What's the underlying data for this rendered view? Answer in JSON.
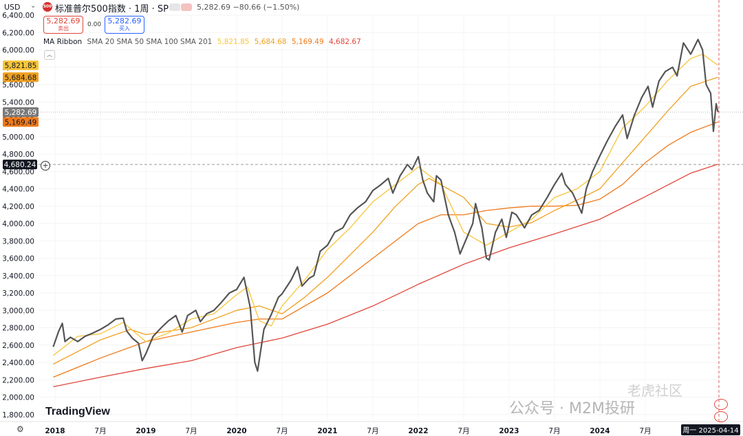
{
  "header": {
    "currency": "USD",
    "logo_text": "500",
    "symbol_title": "标准普尔500指数 · 1周 · SP",
    "last_price": "5,282.69",
    "change": "−80.66 (−1.50%)"
  },
  "trade": {
    "sell_price": "5,282.69",
    "sell_label": "卖出",
    "spread": "0.00",
    "buy_price": "5,282.69",
    "buy_label": "买入"
  },
  "ribbon": {
    "name": "MA Ribbon",
    "params": "SMA 20 SMA 50 SMA 100 SMA 201",
    "v1": "5,821.85",
    "v2": "5,684.68",
    "v3": "5,169.49",
    "v4": "4,682.67"
  },
  "branding": {
    "tradingview": "TradingView",
    "watermark": "公众号 · M2M投研",
    "watermark2": "老虎社区"
  },
  "colors": {
    "price_line": "#555555",
    "sma20": "#f7c53a",
    "sma50": "#f0a020",
    "sma100": "#ef7a1a",
    "sma201": "#e0453a",
    "sell": "#e0453a",
    "buy": "#2962ff"
  },
  "chart_data": {
    "type": "line",
    "title": "标准普尔500指数 · 1周 · SP",
    "ylim": [
      1750,
      6500
    ],
    "y_ticks": [
      1800,
      2000,
      2200,
      2400,
      2600,
      2800,
      3000,
      3200,
      3400,
      3600,
      3800,
      4000,
      4200,
      4400,
      4600,
      4800,
      5000,
      5200,
      5400,
      5600,
      5800,
      6000,
      6200,
      6400
    ],
    "x_tick_labels": [
      {
        "t": 2018.0,
        "label": "2018"
      },
      {
        "t": 2018.5,
        "label": "7月"
      },
      {
        "t": 2019.0,
        "label": "2019"
      },
      {
        "t": 2019.5,
        "label": "7月"
      },
      {
        "t": 2020.0,
        "label": "2020"
      },
      {
        "t": 2020.5,
        "label": "7月"
      },
      {
        "t": 2021.0,
        "label": "2021"
      },
      {
        "t": 2021.5,
        "label": "7月"
      },
      {
        "t": 2022.0,
        "label": "2022"
      },
      {
        "t": 2022.5,
        "label": "7月"
      },
      {
        "t": 2023.0,
        "label": "2023"
      },
      {
        "t": 2023.5,
        "label": "7月"
      },
      {
        "t": 2024.0,
        "label": "2024"
      },
      {
        "t": 2024.5,
        "label": "7月"
      }
    ],
    "x_range": [
      2017.8,
      2025.5
    ],
    "date_label": "周一 2025-04-14",
    "crosshair_price": "4,680.24",
    "crosshair_value": 4680.24,
    "price_tags": [
      {
        "label": "5,821.85",
        "value": 5821.85,
        "color": "#f7c53a"
      },
      {
        "label": "5,684.68",
        "value": 5684.68,
        "color": "#f0a020"
      },
      {
        "label": "5,282.69",
        "value": 5282.69,
        "color": "#7a7a7a"
      },
      {
        "label": "5,169.49",
        "value": 5169.49,
        "color": "#ef7a1a"
      }
    ],
    "series": [
      {
        "name": "SP",
        "key": "price",
        "points": [
          [
            2017.98,
            2580
          ],
          [
            2018.04,
            2760
          ],
          [
            2018.08,
            2850
          ],
          [
            2018.11,
            2640
          ],
          [
            2018.17,
            2690
          ],
          [
            2018.25,
            2640
          ],
          [
            2018.33,
            2700
          ],
          [
            2018.42,
            2740
          ],
          [
            2018.5,
            2780
          ],
          [
            2018.58,
            2830
          ],
          [
            2018.67,
            2900
          ],
          [
            2018.75,
            2910
          ],
          [
            2018.79,
            2760
          ],
          [
            2018.85,
            2680
          ],
          [
            2018.92,
            2620
          ],
          [
            2018.96,
            2420
          ],
          [
            2019.0,
            2500
          ],
          [
            2019.08,
            2700
          ],
          [
            2019.17,
            2800
          ],
          [
            2019.25,
            2880
          ],
          [
            2019.33,
            2940
          ],
          [
            2019.4,
            2750
          ],
          [
            2019.46,
            2940
          ],
          [
            2019.55,
            3000
          ],
          [
            2019.6,
            2870
          ],
          [
            2019.67,
            2960
          ],
          [
            2019.75,
            3000
          ],
          [
            2019.83,
            3090
          ],
          [
            2019.92,
            3200
          ],
          [
            2020.0,
            3240
          ],
          [
            2020.08,
            3380
          ],
          [
            2020.15,
            3030
          ],
          [
            2020.2,
            2400
          ],
          [
            2020.23,
            2300
          ],
          [
            2020.3,
            2780
          ],
          [
            2020.38,
            2950
          ],
          [
            2020.46,
            3150
          ],
          [
            2020.5,
            3190
          ],
          [
            2020.6,
            3350
          ],
          [
            2020.67,
            3500
          ],
          [
            2020.72,
            3280
          ],
          [
            2020.8,
            3370
          ],
          [
            2020.85,
            3400
          ],
          [
            2020.92,
            3680
          ],
          [
            2021.0,
            3750
          ],
          [
            2021.08,
            3900
          ],
          [
            2021.17,
            3950
          ],
          [
            2021.25,
            4100
          ],
          [
            2021.33,
            4180
          ],
          [
            2021.42,
            4250
          ],
          [
            2021.5,
            4380
          ],
          [
            2021.58,
            4440
          ],
          [
            2021.67,
            4520
          ],
          [
            2021.72,
            4350
          ],
          [
            2021.8,
            4550
          ],
          [
            2021.88,
            4680
          ],
          [
            2021.93,
            4620
          ],
          [
            2022.0,
            4770
          ],
          [
            2022.05,
            4500
          ],
          [
            2022.1,
            4350
          ],
          [
            2022.17,
            4250
          ],
          [
            2022.2,
            4550
          ],
          [
            2022.25,
            4500
          ],
          [
            2022.33,
            4100
          ],
          [
            2022.4,
            3900
          ],
          [
            2022.46,
            3650
          ],
          [
            2022.52,
            3800
          ],
          [
            2022.6,
            4000
          ],
          [
            2022.63,
            4230
          ],
          [
            2022.7,
            3950
          ],
          [
            2022.75,
            3600
          ],
          [
            2022.78,
            3580
          ],
          [
            2022.85,
            3900
          ],
          [
            2022.92,
            4050
          ],
          [
            2022.97,
            3840
          ],
          [
            2023.03,
            4130
          ],
          [
            2023.08,
            4100
          ],
          [
            2023.17,
            3950
          ],
          [
            2023.25,
            4100
          ],
          [
            2023.33,
            4150
          ],
          [
            2023.42,
            4300
          ],
          [
            2023.5,
            4450
          ],
          [
            2023.58,
            4580
          ],
          [
            2023.62,
            4450
          ],
          [
            2023.7,
            4350
          ],
          [
            2023.8,
            4120
          ],
          [
            2023.85,
            4400
          ],
          [
            2023.92,
            4600
          ],
          [
            2024.0,
            4780
          ],
          [
            2024.08,
            4950
          ],
          [
            2024.17,
            5120
          ],
          [
            2024.25,
            5250
          ],
          [
            2024.3,
            4980
          ],
          [
            2024.38,
            5250
          ],
          [
            2024.46,
            5450
          ],
          [
            2024.53,
            5580
          ],
          [
            2024.58,
            5340
          ],
          [
            2024.65,
            5640
          ],
          [
            2024.72,
            5750
          ],
          [
            2024.8,
            5800
          ],
          [
            2024.85,
            5700
          ],
          [
            2024.92,
            6080
          ],
          [
            2025.0,
            5950
          ],
          [
            2025.08,
            6120
          ],
          [
            2025.13,
            6000
          ],
          [
            2025.17,
            5600
          ],
          [
            2025.22,
            5500
          ],
          [
            2025.25,
            5062
          ],
          [
            2025.28,
            5380
          ],
          [
            2025.3,
            5282.69
          ]
        ]
      },
      {
        "name": "SMA 20",
        "key": "sma20",
        "points": [
          [
            2017.98,
            2480
          ],
          [
            2018.25,
            2700
          ],
          [
            2018.5,
            2730
          ],
          [
            2018.75,
            2860
          ],
          [
            2019.0,
            2640
          ],
          [
            2019.25,
            2740
          ],
          [
            2019.5,
            2900
          ],
          [
            2019.75,
            2960
          ],
          [
            2020.0,
            3180
          ],
          [
            2020.12,
            3270
          ],
          [
            2020.25,
            2880
          ],
          [
            2020.38,
            2820
          ],
          [
            2020.5,
            3050
          ],
          [
            2020.75,
            3350
          ],
          [
            2021.0,
            3700
          ],
          [
            2021.25,
            3950
          ],
          [
            2021.5,
            4250
          ],
          [
            2021.75,
            4450
          ],
          [
            2022.0,
            4650
          ],
          [
            2022.25,
            4450
          ],
          [
            2022.5,
            3900
          ],
          [
            2022.75,
            3750
          ],
          [
            2023.0,
            3900
          ],
          [
            2023.25,
            4050
          ],
          [
            2023.5,
            4300
          ],
          [
            2023.75,
            4400
          ],
          [
            2024.0,
            4600
          ],
          [
            2024.25,
            5100
          ],
          [
            2024.5,
            5350
          ],
          [
            2024.75,
            5650
          ],
          [
            2025.0,
            5900
          ],
          [
            2025.13,
            5950
          ],
          [
            2025.3,
            5821.85
          ]
        ]
      },
      {
        "name": "SMA 50",
        "key": "sma50",
        "points": [
          [
            2017.98,
            2380
          ],
          [
            2018.5,
            2660
          ],
          [
            2018.83,
            2780
          ],
          [
            2019.0,
            2720
          ],
          [
            2019.5,
            2800
          ],
          [
            2020.0,
            3000
          ],
          [
            2020.25,
            3050
          ],
          [
            2020.5,
            2960
          ],
          [
            2020.75,
            3150
          ],
          [
            2021.0,
            3380
          ],
          [
            2021.5,
            3900
          ],
          [
            2021.75,
            4200
          ],
          [
            2022.0,
            4450
          ],
          [
            2022.12,
            4520
          ],
          [
            2022.5,
            4300
          ],
          [
            2022.75,
            4000
          ],
          [
            2023.0,
            3960
          ],
          [
            2023.25,
            4010
          ],
          [
            2023.5,
            4150
          ],
          [
            2023.75,
            4270
          ],
          [
            2024.0,
            4400
          ],
          [
            2024.25,
            4700
          ],
          [
            2024.5,
            5000
          ],
          [
            2024.75,
            5300
          ],
          [
            2025.0,
            5580
          ],
          [
            2025.3,
            5684.68
          ]
        ]
      },
      {
        "name": "SMA 100",
        "key": "sma100",
        "points": [
          [
            2017.98,
            2230
          ],
          [
            2018.5,
            2450
          ],
          [
            2019.0,
            2640
          ],
          [
            2019.5,
            2750
          ],
          [
            2020.0,
            2860
          ],
          [
            2020.25,
            2900
          ],
          [
            2020.5,
            2900
          ],
          [
            2021.0,
            3200
          ],
          [
            2021.5,
            3600
          ],
          [
            2022.0,
            4000
          ],
          [
            2022.25,
            4100
          ],
          [
            2022.5,
            4100
          ],
          [
            2022.75,
            4150
          ],
          [
            2023.0,
            4180
          ],
          [
            2023.25,
            4200
          ],
          [
            2023.5,
            4200
          ],
          [
            2023.75,
            4210
          ],
          [
            2024.0,
            4280
          ],
          [
            2024.25,
            4450
          ],
          [
            2024.5,
            4700
          ],
          [
            2024.75,
            4900
          ],
          [
            2025.0,
            5050
          ],
          [
            2025.3,
            5169.49
          ]
        ]
      },
      {
        "name": "SMA 201",
        "key": "sma201",
        "points": [
          [
            2017.98,
            2120
          ],
          [
            2018.5,
            2230
          ],
          [
            2019.0,
            2330
          ],
          [
            2019.5,
            2420
          ],
          [
            2020.0,
            2570
          ],
          [
            2020.5,
            2680
          ],
          [
            2021.0,
            2840
          ],
          [
            2021.5,
            3050
          ],
          [
            2022.0,
            3300
          ],
          [
            2022.5,
            3530
          ],
          [
            2023.0,
            3720
          ],
          [
            2023.5,
            3880
          ],
          [
            2024.0,
            4050
          ],
          [
            2024.5,
            4310
          ],
          [
            2025.0,
            4580
          ],
          [
            2025.3,
            4682.67
          ]
        ]
      }
    ]
  }
}
